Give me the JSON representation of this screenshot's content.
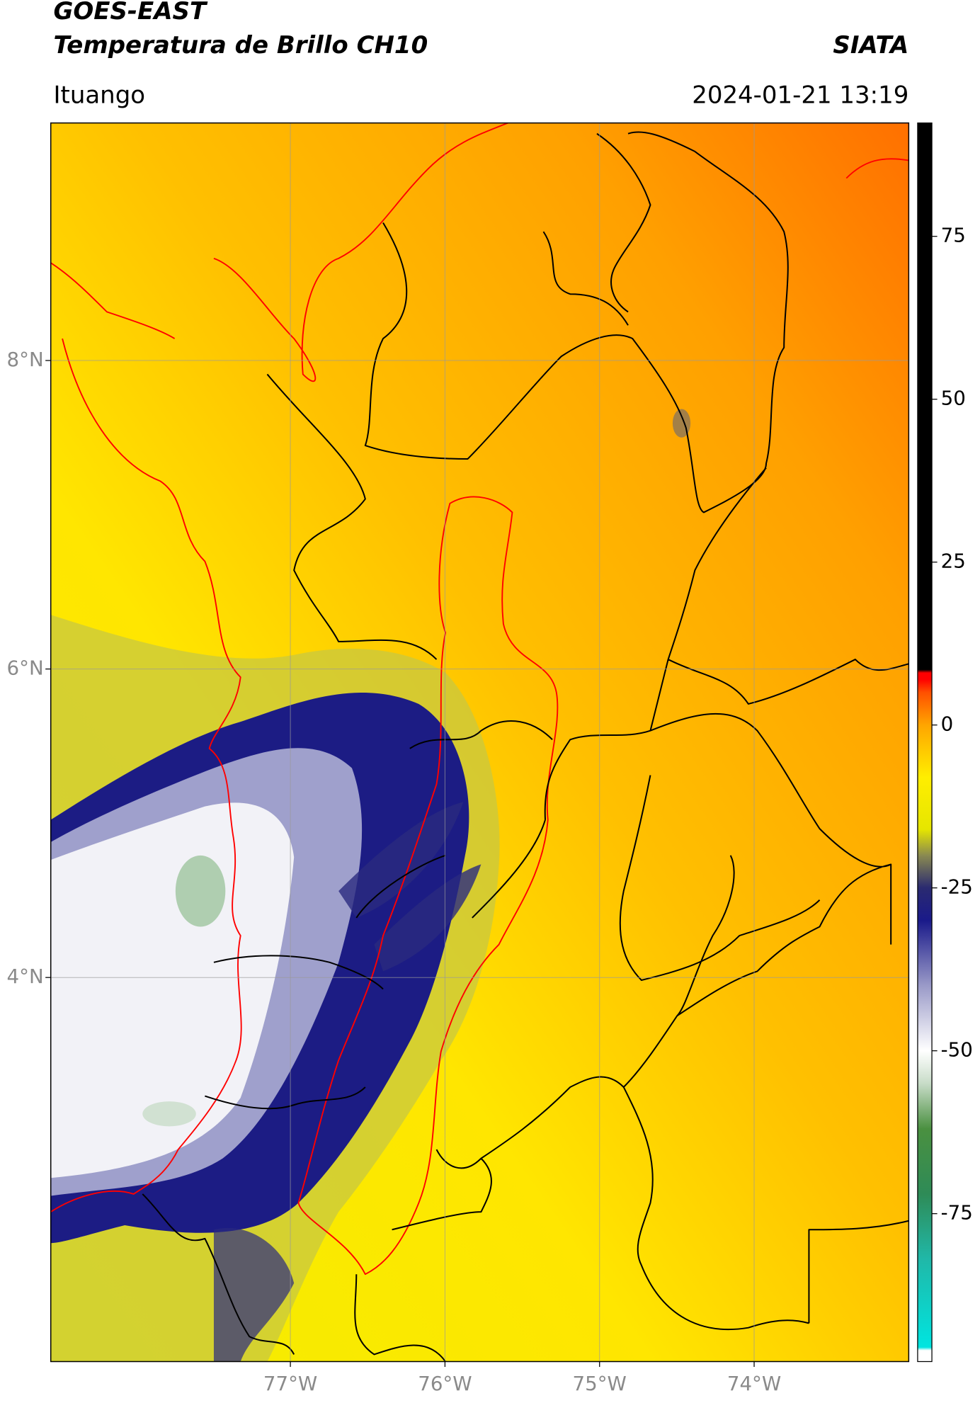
{
  "header": {
    "title": "GOES-EAST",
    "subtitle": "Temperatura de Brillo CH10",
    "brand": "SIATA",
    "location": "Ituango",
    "datetime": "2024-01-21 13:19"
  },
  "map": {
    "xlim": [
      -78.55,
      -73.0
    ],
    "ylim": [
      1.51,
      9.54
    ],
    "xticks": [
      {
        "value": -77,
        "label": "77°W"
      },
      {
        "value": -76,
        "label": "76°W"
      },
      {
        "value": -75,
        "label": "75°W"
      },
      {
        "value": -74,
        "label": "74°W"
      }
    ],
    "yticks": [
      {
        "value": 8,
        "label": "8°N"
      },
      {
        "value": 6,
        "label": "6°N"
      },
      {
        "value": 4,
        "label": "4°N"
      }
    ],
    "grid": true
  },
  "colorbar": {
    "lim": [
      -97.7,
      92.4
    ],
    "ticks": [
      -75,
      -50,
      -25,
      0,
      25,
      50,
      75
    ],
    "colormap": [
      {
        "value": -96,
        "color": "#ffffff"
      },
      {
        "value": -95.5,
        "color": "#00e5e0"
      },
      {
        "value": -82,
        "color": "#20b8a8"
      },
      {
        "value": -72,
        "color": "#2e8b57"
      },
      {
        "value": -62,
        "color": "#4a9040"
      },
      {
        "value": -55,
        "color": "#c8dcc8"
      },
      {
        "value": -50,
        "color": "#ffffff"
      },
      {
        "value": -40,
        "color": "#9a9ac8"
      },
      {
        "value": -30,
        "color": "#1a1a8a"
      },
      {
        "value": -25,
        "color": "#2a2a70"
      },
      {
        "value": -20,
        "color": "#8a8a50"
      },
      {
        "value": -16,
        "color": "#e6e600"
      },
      {
        "value": -8,
        "color": "#ffee00"
      },
      {
        "value": 0,
        "color": "#ffa500"
      },
      {
        "value": 5,
        "color": "#ff5000"
      },
      {
        "value": 7,
        "color": "#ff0000"
      },
      {
        "value": 8,
        "color": "#ff0000"
      },
      {
        "value": 8.5,
        "color": "#000000"
      },
      {
        "value": 92.4,
        "color": "#000000"
      }
    ]
  }
}
